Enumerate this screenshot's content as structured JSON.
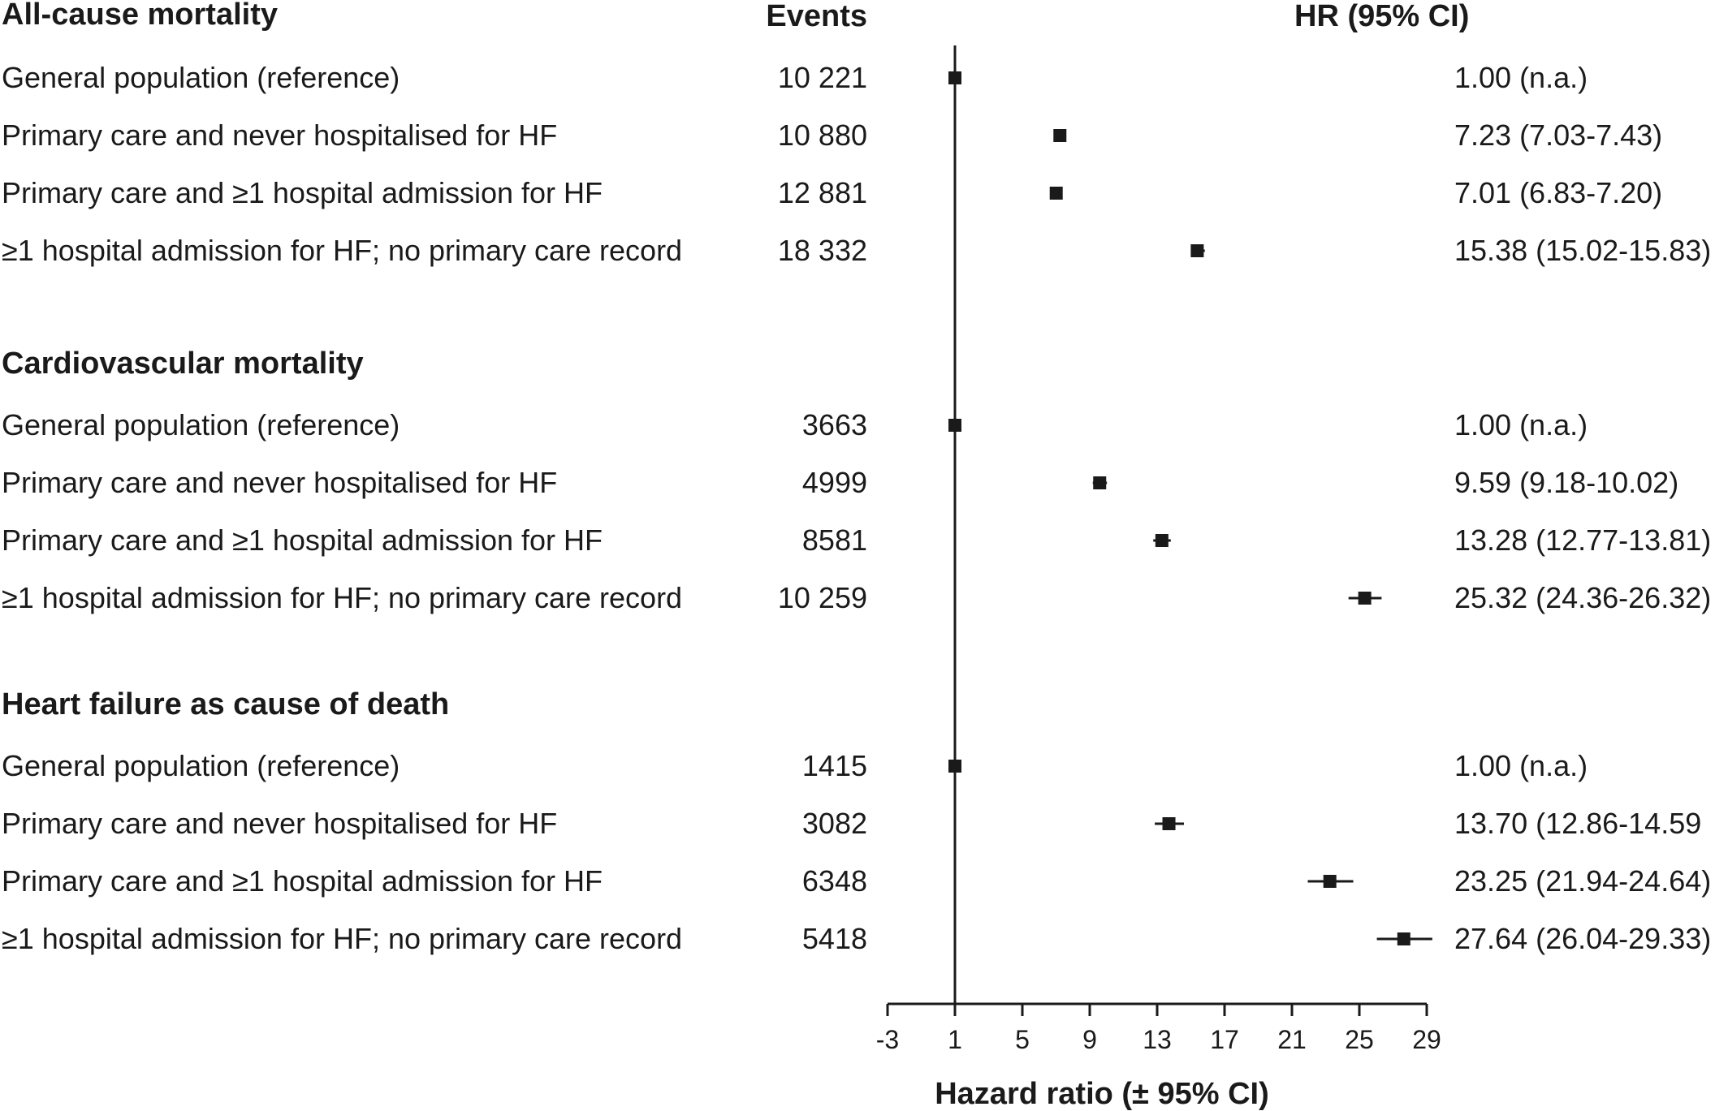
{
  "chart_data": {
    "type": "forest",
    "header": {
      "events": "Events",
      "hr": "HR (95% CI)"
    },
    "xlabel": "Hazard ratio (± 95% CI)",
    "xlim": [
      -3,
      29
    ],
    "xticks": [
      "-3",
      "1",
      "5",
      "9",
      "13",
      "17",
      "21",
      "25",
      "29"
    ],
    "reference_line": 1,
    "groups": [
      {
        "title": "All-cause mortality",
        "rows": [
          {
            "label": "General population (reference)",
            "events": "10 221",
            "hr": 1.0,
            "lo": 1.0,
            "hi": 1.0,
            "hr_text": "1.00 (n.a.)"
          },
          {
            "label": "Primary care and never hospitalised for HF",
            "events": "10 880",
            "hr": 7.23,
            "lo": 7.03,
            "hi": 7.43,
            "hr_text": "7.23 (7.03-7.43)"
          },
          {
            "label": "Primary care and ≥1 hospital admission for HF",
            "events": "12 881",
            "hr": 7.01,
            "lo": 6.83,
            "hi": 7.2,
            "hr_text": "7.01 (6.83-7.20)"
          },
          {
            "label": "≥1 hospital admission for HF; no primary care record",
            "events": "18 332",
            "hr": 15.38,
            "lo": 15.02,
            "hi": 15.83,
            "hr_text": "15.38 (15.02-15.83)"
          }
        ]
      },
      {
        "title": "Cardiovascular mortality",
        "rows": [
          {
            "label": "General population (reference)",
            "events": "3663",
            "hr": 1.0,
            "lo": 1.0,
            "hi": 1.0,
            "hr_text": "1.00 (n.a.)"
          },
          {
            "label": "Primary care and never hospitalised for HF",
            "events": "4999",
            "hr": 9.59,
            "lo": 9.18,
            "hi": 10.02,
            "hr_text": "9.59 (9.18-10.02)"
          },
          {
            "label": "Primary care and ≥1 hospital admission for HF",
            "events": "8581",
            "hr": 13.28,
            "lo": 12.77,
            "hi": 13.81,
            "hr_text": "13.28 (12.77-13.81)"
          },
          {
            "label": "≥1 hospital admission for HF; no primary care record",
            "events": "10 259",
            "hr": 25.32,
            "lo": 24.36,
            "hi": 26.32,
            "hr_text": "25.32 (24.36-26.32)"
          }
        ]
      },
      {
        "title": "Heart failure as cause of death",
        "rows": [
          {
            "label": "General population (reference)",
            "events": "1415",
            "hr": 1.0,
            "lo": 1.0,
            "hi": 1.0,
            "hr_text": "1.00 (n.a.)"
          },
          {
            "label": "Primary care and never hospitalised for HF",
            "events": "3082",
            "hr": 13.7,
            "lo": 12.86,
            "hi": 14.59,
            "hr_text": "13.70 (12.86-14.59"
          },
          {
            "label": "Primary care and ≥1 hospital admission for HF",
            "events": "6348",
            "hr": 23.25,
            "lo": 21.94,
            "hi": 24.64,
            "hr_text": "23.25 (21.94-24.64)"
          },
          {
            "label": "≥1 hospital admission for HF; no primary care record",
            "events": "5418",
            "hr": 27.64,
            "lo": 26.04,
            "hi": 29.33,
            "hr_text": "27.64 (26.04-29.33)"
          }
        ]
      }
    ]
  }
}
